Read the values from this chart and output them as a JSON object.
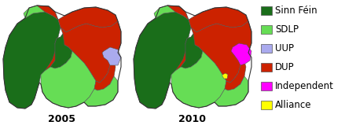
{
  "legend_entries": [
    {
      "label": "Sinn Féin",
      "color": "#1a6e1a"
    },
    {
      "label": "SDLP",
      "color": "#66dd55"
    },
    {
      "label": "UUP",
      "color": "#aaaaee"
    },
    {
      "label": "DUP",
      "color": "#cc2200"
    },
    {
      "label": "Independent",
      "color": "#ff00ff"
    },
    {
      "label": "Alliance",
      "color": "#ffff00"
    }
  ],
  "year_labels": [
    "2005",
    "2010"
  ],
  "background_color": "#ffffff",
  "legend_fontsize": 8.5,
  "year_fontsize": 9
}
